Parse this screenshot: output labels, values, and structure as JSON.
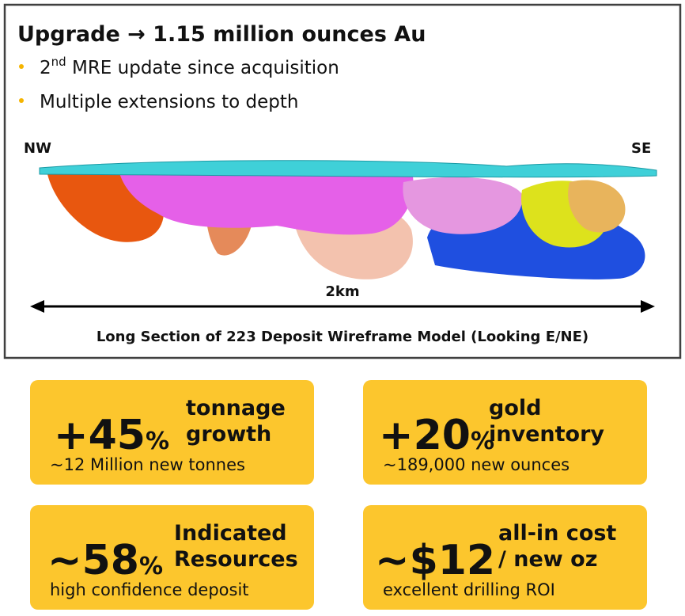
{
  "header": {
    "title": "Upgrade → 1.15 million ounces Au",
    "bullets": [
      {
        "pre": "2",
        "sup": "nd",
        "post": " MRE update since acquisition"
      },
      {
        "pre": "Multiple extensions to depth"
      }
    ]
  },
  "section": {
    "left_label": "NW",
    "right_label": "SE",
    "scale_label": "2km",
    "caption": "Long Section of 223 Deposit Wireframe Model (Looking E/NE)"
  },
  "cards": [
    {
      "big": "+45",
      "suffix": "%",
      "label": [
        "tonnage",
        "growth"
      ],
      "sub": "~12 Million new tonnes"
    },
    {
      "big": "+20",
      "suffix": "%",
      "label": [
        "gold",
        "inventory"
      ],
      "sub": "~189,000 new ounces"
    },
    {
      "big": "~58",
      "suffix": "%",
      "label": [
        "Indicated",
        "Resources"
      ],
      "sub": "high confidence deposit"
    },
    {
      "big": "~$12",
      "label": [
        "all-in cost",
        "/ new oz"
      ],
      "sub": "excellent drilling ROI"
    }
  ]
}
